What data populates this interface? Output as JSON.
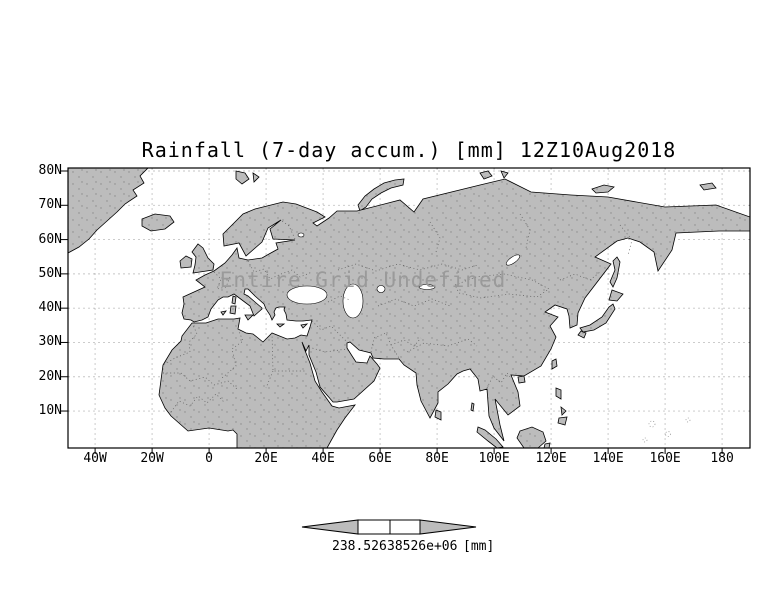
{
  "title": "Rainfall (7-day accum.) [mm] 12Z10Aug2018",
  "status_message": "Entire Grid Undefined",
  "chart_data": {
    "type": "map",
    "title": "Rainfall (7-day accum.) [mm] 12Z10Aug2018",
    "variable": "Rainfall (7-day accum.)",
    "units": "mm",
    "valid_time": "12Z10Aug2018",
    "data_status": "Entire Grid Undefined",
    "values": null,
    "y_axis": {
      "labels": [
        "80N",
        "70N",
        "60N",
        "50N",
        "40N",
        "30N",
        "20N",
        "10N"
      ]
    },
    "x_axis": {
      "labels": [
        "40W",
        "20W",
        "0",
        "20E",
        "40E",
        "60E",
        "80E",
        "100E",
        "120E",
        "140E",
        "160E",
        "180"
      ]
    },
    "grid": "dotted graticule every 10 deg lat / 20 deg lon",
    "colorbar": {
      "labels": [
        "238.526",
        "38526e+06"
      ],
      "unit_label": "[mm]"
    }
  },
  "colors": {
    "land": "#bcbcbc",
    "ocean": "#ffffff",
    "frame": "#000000",
    "undefined_text": "#9a9a9a"
  }
}
